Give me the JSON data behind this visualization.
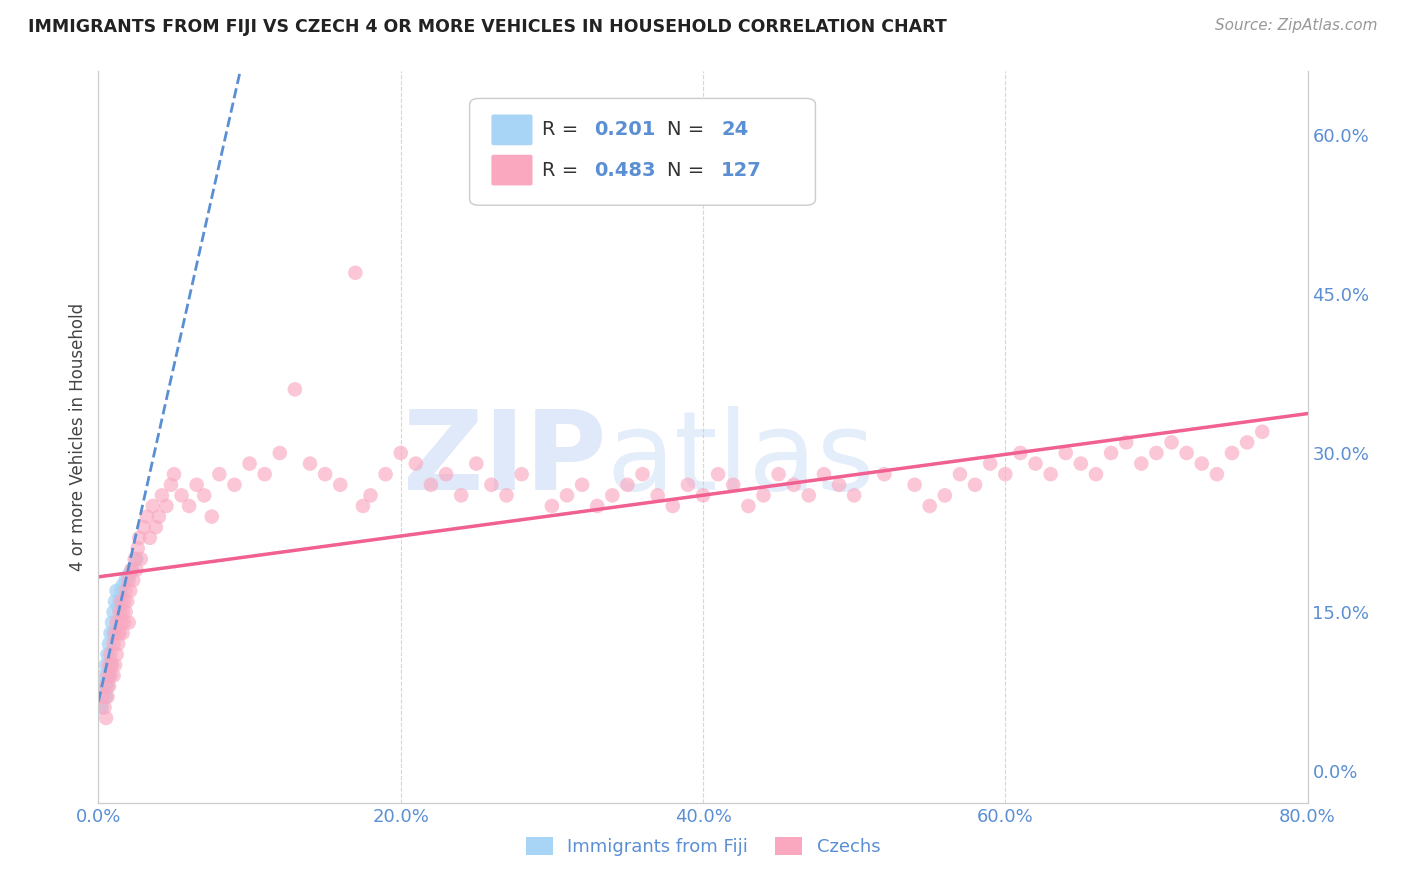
{
  "title": "IMMIGRANTS FROM FIJI VS CZECH 4 OR MORE VEHICLES IN HOUSEHOLD CORRELATION CHART",
  "source": "Source: ZipAtlas.com",
  "xlabel_tick_vals": [
    0.0,
    0.2,
    0.4,
    0.6,
    0.8
  ],
  "ylabel_tick_vals": [
    0.0,
    0.15,
    0.3,
    0.45,
    0.6
  ],
  "ylabel": "4 or more Vehicles in Household",
  "xmin": 0.0,
  "xmax": 0.8,
  "ymin": -0.03,
  "ymax": 0.66,
  "fiji_R": 0.201,
  "fiji_N": 24,
  "czech_R": 0.483,
  "czech_N": 127,
  "fiji_color": "#A8D4F5",
  "fiji_line_color": "#5B8FD4",
  "fiji_line_style": "--",
  "czech_color": "#F9A8C0",
  "czech_line_color": "#F06090",
  "czech_line_style": "-",
  "watermark_zip_color": "#C8DEFA",
  "watermark_atlas_color": "#C8DEFA",
  "legend_label_fiji": "Immigrants from Fiji",
  "legend_label_czech": "Czechs",
  "fiji_x": [
    0.002,
    0.003,
    0.004,
    0.005,
    0.005,
    0.006,
    0.006,
    0.007,
    0.007,
    0.008,
    0.008,
    0.009,
    0.01,
    0.01,
    0.011,
    0.012,
    0.013,
    0.014,
    0.015,
    0.016,
    0.018,
    0.02,
    0.022,
    0.025
  ],
  "fiji_y": [
    0.06,
    0.08,
    0.09,
    0.1,
    0.07,
    0.11,
    0.08,
    0.12,
    0.09,
    0.13,
    0.1,
    0.14,
    0.13,
    0.15,
    0.16,
    0.17,
    0.155,
    0.16,
    0.17,
    0.175,
    0.18,
    0.185,
    0.19,
    0.2
  ],
  "czech_x": [
    0.003,
    0.004,
    0.005,
    0.005,
    0.006,
    0.006,
    0.007,
    0.007,
    0.008,
    0.008,
    0.009,
    0.01,
    0.01,
    0.011,
    0.011,
    0.012,
    0.012,
    0.013,
    0.013,
    0.014,
    0.014,
    0.015,
    0.015,
    0.016,
    0.016,
    0.017,
    0.017,
    0.018,
    0.018,
    0.019,
    0.02,
    0.02,
    0.021,
    0.022,
    0.023,
    0.024,
    0.025,
    0.026,
    0.027,
    0.028,
    0.03,
    0.032,
    0.034,
    0.036,
    0.038,
    0.04,
    0.042,
    0.045,
    0.048,
    0.05,
    0.055,
    0.06,
    0.065,
    0.07,
    0.075,
    0.08,
    0.09,
    0.1,
    0.11,
    0.12,
    0.13,
    0.14,
    0.15,
    0.16,
    0.17,
    0.175,
    0.18,
    0.19,
    0.2,
    0.21,
    0.22,
    0.23,
    0.24,
    0.25,
    0.26,
    0.27,
    0.28,
    0.3,
    0.31,
    0.32,
    0.33,
    0.34,
    0.35,
    0.36,
    0.37,
    0.38,
    0.39,
    0.4,
    0.41,
    0.42,
    0.43,
    0.44,
    0.45,
    0.46,
    0.47,
    0.48,
    0.49,
    0.5,
    0.52,
    0.54,
    0.55,
    0.56,
    0.57,
    0.58,
    0.59,
    0.6,
    0.61,
    0.62,
    0.63,
    0.64,
    0.65,
    0.66,
    0.67,
    0.68,
    0.69,
    0.7,
    0.71,
    0.72,
    0.73,
    0.74,
    0.75,
    0.76,
    0.77
  ],
  "czech_y": [
    0.07,
    0.06,
    0.08,
    0.05,
    0.09,
    0.07,
    0.1,
    0.08,
    0.09,
    0.11,
    0.1,
    0.09,
    0.12,
    0.1,
    0.13,
    0.11,
    0.14,
    0.12,
    0.13,
    0.15,
    0.13,
    0.14,
    0.16,
    0.15,
    0.13,
    0.16,
    0.14,
    0.15,
    0.17,
    0.16,
    0.14,
    0.18,
    0.17,
    0.19,
    0.18,
    0.2,
    0.19,
    0.21,
    0.22,
    0.2,
    0.23,
    0.24,
    0.22,
    0.25,
    0.23,
    0.24,
    0.26,
    0.25,
    0.27,
    0.28,
    0.26,
    0.25,
    0.27,
    0.26,
    0.24,
    0.28,
    0.27,
    0.29,
    0.28,
    0.3,
    0.36,
    0.29,
    0.28,
    0.27,
    0.47,
    0.25,
    0.26,
    0.28,
    0.3,
    0.29,
    0.27,
    0.28,
    0.26,
    0.29,
    0.27,
    0.26,
    0.28,
    0.25,
    0.26,
    0.27,
    0.25,
    0.26,
    0.27,
    0.28,
    0.26,
    0.25,
    0.27,
    0.26,
    0.28,
    0.27,
    0.25,
    0.26,
    0.28,
    0.27,
    0.26,
    0.28,
    0.27,
    0.26,
    0.28,
    0.27,
    0.25,
    0.26,
    0.28,
    0.27,
    0.29,
    0.28,
    0.3,
    0.29,
    0.28,
    0.3,
    0.29,
    0.28,
    0.3,
    0.31,
    0.29,
    0.3,
    0.31,
    0.3,
    0.29,
    0.28,
    0.3,
    0.31,
    0.32
  ]
}
